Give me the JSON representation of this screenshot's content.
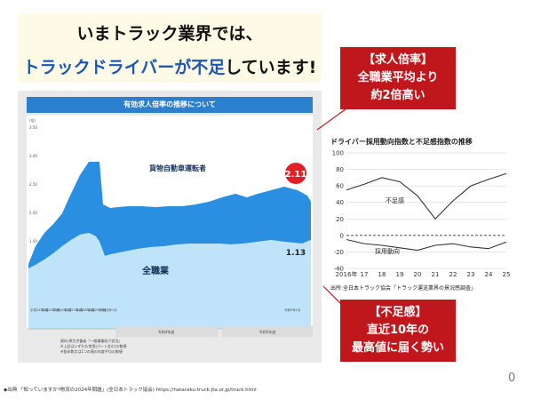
{
  "headline": {
    "line1": "いまトラック業界では、",
    "line2_blue": "トラックドライバーが不足",
    "line2_rest": "しています!"
  },
  "left_chart": {
    "title": "有効求人倍率の推移について",
    "series_truck_label": "貨物自動車運転者",
    "series_all_label": "全職業",
    "value_truck_latest": "2.11",
    "value_all_latest": "1.13",
    "y_ticks": [
      "3.50",
      "3.00",
      "2.50",
      "2.00",
      "1.50",
      "1.00",
      "0.50"
    ],
    "y_unit": "(倍)",
    "x_labels_start": [
      "平成24年1月",
      "平成25年1月",
      "平成26年1月",
      "平成27年1月",
      "平成28年1月",
      "平成29年1月"
    ],
    "x_label_r1": "令和元年1月",
    "x_label_r5": "令和5年1月",
    "era_label_1": "令和4年度",
    "era_label_2": "令和5年度",
    "sources": [
      "資料:厚生労働省「一般職業紹介状況」",
      "※上記はいずれも常用(パート含む)の数値",
      "※各年数字は1つの値の年度平均の数値"
    ],
    "colors": {
      "truck": "#2a8fe0",
      "all": "#bfe3f8",
      "badge": "#e01f26"
    },
    "chart_data": {
      "type": "area",
      "series": [
        {
          "name": "貨物自動車運転者",
          "latest": 2.11
        },
        {
          "name": "全職業",
          "latest": 1.13
        }
      ],
      "ylim": [
        0,
        3.5
      ]
    }
  },
  "right_chart": {
    "title": "ドライバー採用動向指数と不足感指数の推移",
    "label_shortage": "不足感",
    "label_hiring": "採用動向",
    "source": "出所:全日本トラック協会「トラック運送業界の景況感調査」",
    "y_ticks": [
      "100",
      "80",
      "60",
      "40",
      "20",
      "0",
      "-20",
      "-40"
    ],
    "x_ticks": [
      "2016年",
      "17",
      "18",
      "19",
      "20",
      "21",
      "22",
      "23",
      "24",
      "25"
    ],
    "chart_data": {
      "type": "line",
      "x": [
        "2016",
        "17",
        "18",
        "19",
        "20",
        "21",
        "22",
        "23",
        "24",
        "25"
      ],
      "ylim": [
        -40,
        100
      ],
      "series": [
        {
          "name": "不足感",
          "values": [
            55,
            62,
            70,
            65,
            48,
            20,
            42,
            60,
            68,
            75
          ]
        },
        {
          "name": "採用動向",
          "values": [
            -5,
            -10,
            -12,
            -15,
            -18,
            -12,
            -10,
            -14,
            -16,
            -8
          ]
        }
      ]
    }
  },
  "callout_top": {
    "line1": "【求人倍率】",
    "line2": "全職業平均より",
    "line3": "約2倍高い"
  },
  "callout_bottom": {
    "line1": "【不足感】",
    "line2": "直近10年の",
    "line3": "最高値に届く勢い"
  },
  "footer": "◆出典 「知っていますか?物流の2024年問題」(全日本トラック協会) https://hataraku-truck.jta.or.jp/truck.html",
  "page_number": "0"
}
